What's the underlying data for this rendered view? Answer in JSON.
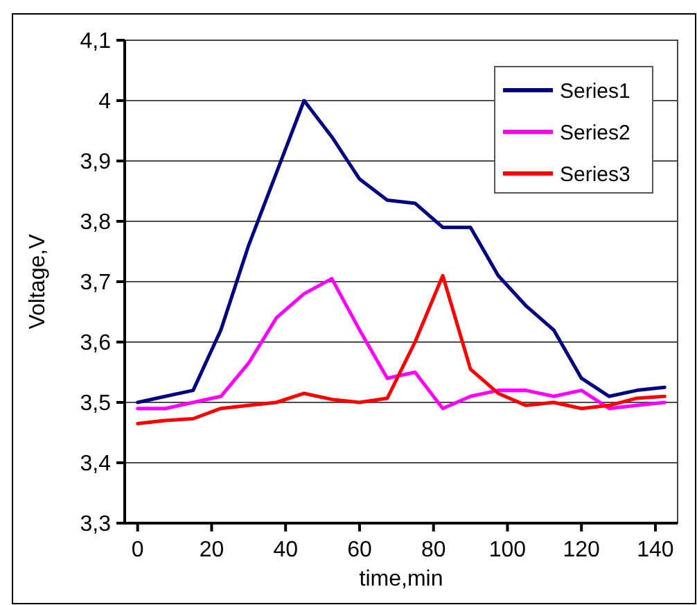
{
  "chart_data": {
    "type": "line",
    "xlabel": "time,min",
    "ylabel": "Voltage,V",
    "x": [
      0,
      7.5,
      15,
      22.5,
      30,
      37.5,
      45,
      52.5,
      60,
      67.5,
      75,
      82.5,
      90,
      97.5,
      105,
      112.5,
      120,
      127.5,
      135,
      142.5
    ],
    "series": [
      {
        "name": "Series1",
        "color": "#000080",
        "values": [
          3.5,
          3.51,
          3.52,
          3.62,
          3.76,
          3.88,
          4.0,
          3.94,
          3.87,
          3.835,
          3.83,
          3.79,
          3.79,
          3.71,
          3.66,
          3.62,
          3.54,
          3.51,
          3.52,
          3.525
        ]
      },
      {
        "name": "Series2",
        "color": "#ff00ff",
        "values": [
          3.49,
          3.49,
          3.5,
          3.51,
          3.565,
          3.64,
          3.68,
          3.705,
          3.62,
          3.54,
          3.55,
          3.49,
          3.51,
          3.52,
          3.52,
          3.51,
          3.52,
          3.49,
          3.495,
          3.5
        ]
      },
      {
        "name": "Series3",
        "color": "#ff0000",
        "values": [
          3.465,
          3.47,
          3.473,
          3.49,
          3.495,
          3.5,
          3.515,
          3.505,
          3.5,
          3.507,
          3.6,
          3.71,
          3.555,
          3.515,
          3.495,
          3.5,
          3.49,
          3.495,
          3.507,
          3.51
        ]
      }
    ],
    "xlim": [
      -3.5,
      146
    ],
    "xticks": [
      0,
      20,
      40,
      60,
      80,
      100,
      120,
      140
    ],
    "ylim": [
      3.3,
      4.1
    ],
    "yticks": [
      {
        "value": 3.3,
        "label": "3,3"
      },
      {
        "value": 3.4,
        "label": "3,4"
      },
      {
        "value": 3.5,
        "label": "3,5"
      },
      {
        "value": 3.6,
        "label": "3,6"
      },
      {
        "value": 3.7,
        "label": "3,7"
      },
      {
        "value": 3.8,
        "label": "3,8"
      },
      {
        "value": 3.9,
        "label": "3,9"
      },
      4,
      {
        "value": 4.1,
        "label": "4,1"
      }
    ],
    "grid": "y",
    "legend": "top right",
    "marker": "none",
    "line_style": "solid"
  }
}
